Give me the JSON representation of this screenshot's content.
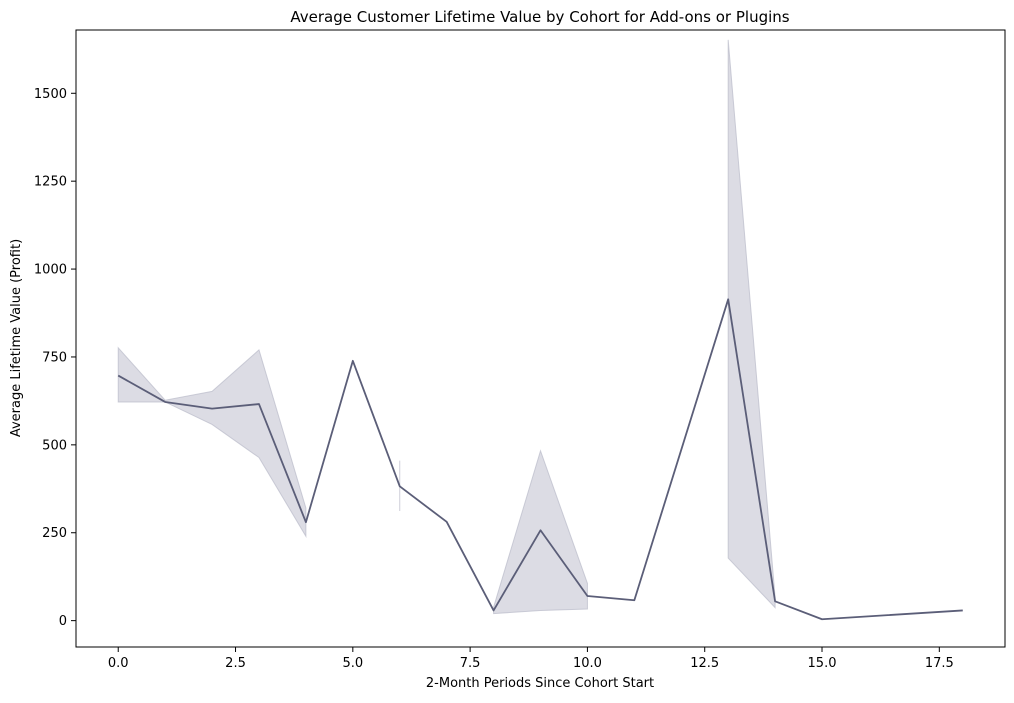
{
  "chart_data": {
    "type": "line",
    "title": "Average Customer Lifetime Value by Cohort for Add-ons or Plugins",
    "xlabel": "2-Month Periods Since Cohort Start",
    "ylabel": "Average Lifetime Value (Profit)",
    "xlim": [
      -0.9,
      18.9
    ],
    "ylim": [
      -75,
      1680
    ],
    "xticks": [
      0,
      2.5,
      5,
      7.5,
      10,
      12.5,
      15,
      17.5
    ],
    "xtick_labels": [
      "0.0",
      "2.5",
      "5.0",
      "7.5",
      "10.0",
      "12.5",
      "15.0",
      "17.5"
    ],
    "yticks": [
      0,
      250,
      500,
      750,
      1000,
      1250,
      1500
    ],
    "ytick_labels": [
      "0",
      "250",
      "500",
      "750",
      "1000",
      "1250",
      "1500"
    ],
    "grid": false,
    "series": [
      {
        "x": [
          0,
          1,
          2,
          3,
          4,
          5,
          6,
          7,
          8,
          9,
          10,
          11,
          13,
          14,
          15,
          18
        ],
        "y": [
          697,
          622,
          603,
          616,
          280,
          739,
          382,
          281,
          29,
          257,
          70,
          58,
          914,
          55,
          4,
          29
        ],
        "color": "#5b5e78",
        "band_color": "#b9bac9"
      }
    ],
    "confidence_band": [
      {
        "x": [
          0,
          1,
          2,
          3,
          4
        ],
        "lower": [
          622,
          622,
          558,
          464,
          240
        ],
        "upper": [
          776,
          627,
          652,
          770,
          320
        ]
      },
      {
        "x": [
          6,
          6
        ],
        "lower": [
          312,
          312
        ],
        "upper": [
          455,
          455
        ]
      },
      {
        "x": [
          8,
          9,
          10
        ],
        "lower": [
          20,
          29,
          33
        ],
        "upper": [
          38,
          483,
          106
        ]
      },
      {
        "x": [
          13,
          14
        ],
        "lower": [
          178,
          37
        ],
        "upper": [
          1652,
          66
        ]
      }
    ]
  }
}
